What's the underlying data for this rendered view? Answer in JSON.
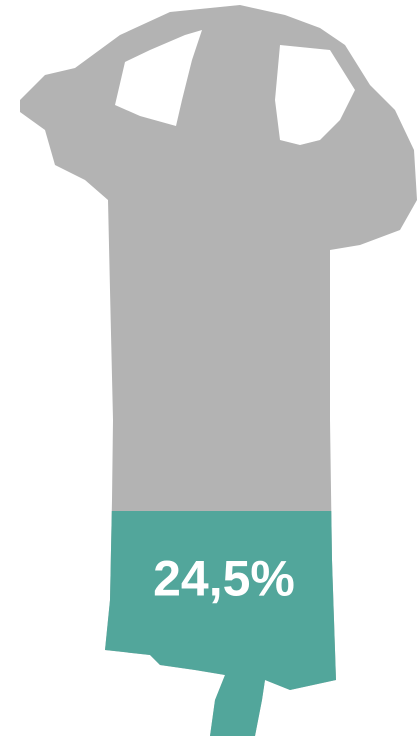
{
  "chart_data": {
    "type": "pictogram",
    "values": [
      24.5
    ],
    "value_labels": [
      "24,5%"
    ],
    "color": "#52a69b",
    "background_color": "#b3b3b3"
  }
}
